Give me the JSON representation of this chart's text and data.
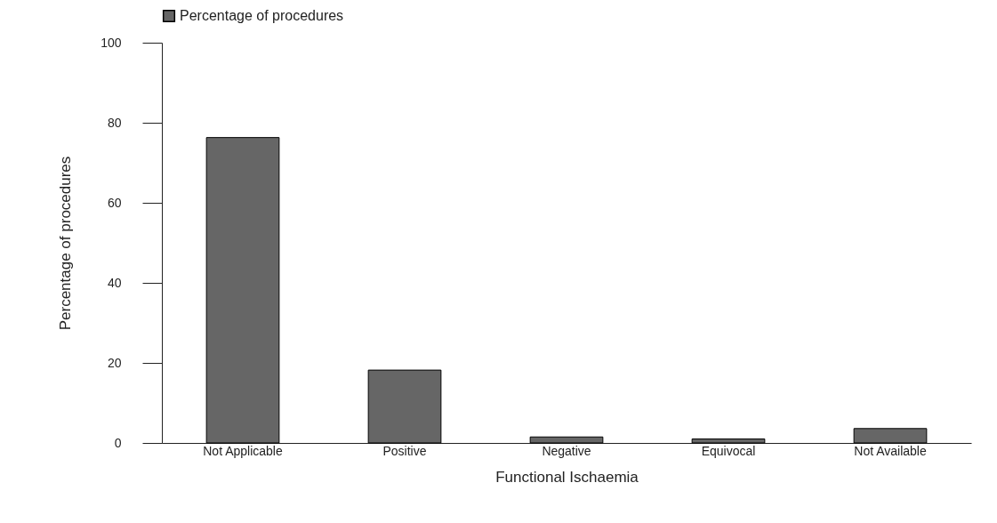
{
  "chart_data": {
    "type": "bar",
    "xlabel": "Functional Ischaemia",
    "ylabel": "Percentage of procedures",
    "categories": [
      "Not Applicable",
      "Positive",
      "Negative",
      "Equivocal",
      "Not Available"
    ],
    "series": [
      {
        "name": "Percentage of procedures",
        "color": "#666666",
        "values": [
          76.3,
          18.2,
          1.5,
          1.0,
          3.6
        ]
      }
    ],
    "ylim": [
      0,
      100
    ],
    "yticks": [
      0,
      20,
      40,
      60,
      80,
      100
    ],
    "grid": false,
    "legend": "top left"
  }
}
